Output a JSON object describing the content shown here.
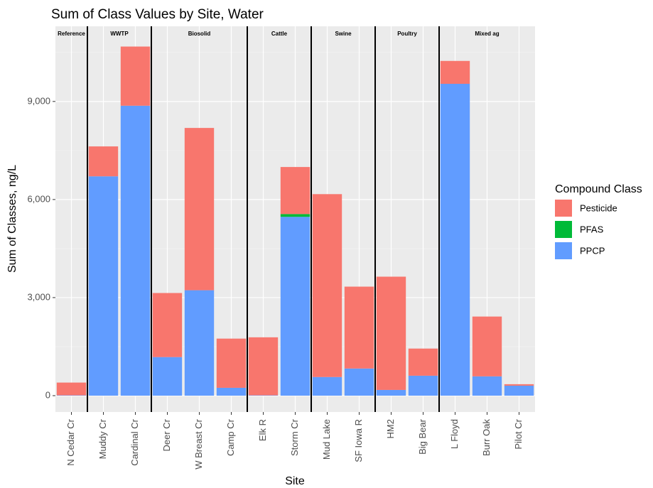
{
  "chart_data": {
    "type": "stacked_bar",
    "title": "Sum of Class Values by Site, Water",
    "x_label": "Site",
    "y_label": "Sum of Classes, ng/L",
    "legend_title": "Compound Class",
    "categories": [
      "N Cedar Cr",
      "Muddy Cr",
      "Cardinal Cr",
      "Deer Cr",
      "W Breast Cr",
      "Camp Cr",
      "Elk R",
      "Storm Cr",
      "Mud Lake",
      "SF Iowa R",
      "HM2",
      "Big Bear",
      "L Floyd",
      "Burr Oak",
      "Pilot Cr"
    ],
    "groups": [
      {
        "label": "Reference",
        "size": 1
      },
      {
        "label": "WWTP",
        "size": 2
      },
      {
        "label": "Biosolid",
        "size": 3
      },
      {
        "label": "Cattle",
        "size": 2
      },
      {
        "label": "Swine",
        "size": 2
      },
      {
        "label": "Poultry",
        "size": 2
      },
      {
        "label": "Mixed ag",
        "size": 3
      }
    ],
    "series": [
      {
        "name": "PPCP",
        "color": "#619cff",
        "values": [
          10,
          6710,
          8870,
          1180,
          3225,
          240,
          10,
          5470,
          570,
          830,
          175,
          610,
          9540,
          590,
          305
        ]
      },
      {
        "name": "PFAS",
        "color": "#00ba38",
        "values": [
          0,
          0,
          0,
          0,
          0,
          0,
          0,
          85,
          0,
          0,
          0,
          0,
          0,
          0,
          0
        ]
      },
      {
        "name": "Pesticide",
        "color": "#f8766d",
        "values": [
          390,
          915,
          1810,
          1960,
          4965,
          1505,
          1775,
          1440,
          5595,
          2505,
          3465,
          830,
          700,
          1830,
          45
        ]
      }
    ],
    "legend_order": [
      "Pesticide",
      "PFAS",
      "PPCP"
    ],
    "ylim": [
      -500,
      11300
    ],
    "yticks": [
      0,
      {
        "value": 3000,
        "label": "3,000"
      },
      {
        "value": 6000,
        "label": "6,000"
      },
      {
        "value": 9000,
        "label": "9,000"
      }
    ],
    "grid": true
  }
}
